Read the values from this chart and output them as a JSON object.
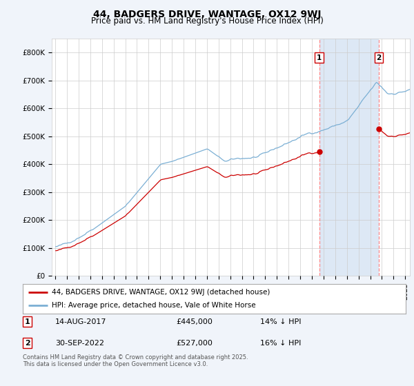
{
  "title": "44, BADGERS DRIVE, WANTAGE, OX12 9WJ",
  "subtitle": "Price paid vs. HM Land Registry's House Price Index (HPI)",
  "legend_line1": "44, BADGERS DRIVE, WANTAGE, OX12 9WJ (detached house)",
  "legend_line2": "HPI: Average price, detached house, Vale of White Horse",
  "annotation1_date": "14-AUG-2017",
  "annotation1_price": "£445,000",
  "annotation1_hpi": "14% ↓ HPI",
  "annotation2_date": "30-SEP-2022",
  "annotation2_price": "£527,000",
  "annotation2_hpi": "16% ↓ HPI",
  "footer": "Contains HM Land Registry data © Crown copyright and database right 2025.\nThis data is licensed under the Open Government Licence v3.0.",
  "line_color_red": "#cc0000",
  "line_color_blue": "#7bafd4",
  "vline_color": "#ff8888",
  "shade_color": "#dde8f5",
  "dot_color": "#cc0000",
  "background_color": "#f0f4fa",
  "plot_bg_color": "#ffffff",
  "ylim": [
    0,
    850000
  ],
  "yticks": [
    0,
    100000,
    200000,
    300000,
    400000,
    500000,
    600000,
    700000,
    800000
  ],
  "ytick_labels": [
    "£0",
    "£100K",
    "£200K",
    "£300K",
    "£400K",
    "£500K",
    "£600K",
    "£700K",
    "£800K"
  ],
  "sale1_year": 2017.625,
  "sale2_year": 2022.75,
  "sale1_value": 445000,
  "sale2_value": 527000
}
